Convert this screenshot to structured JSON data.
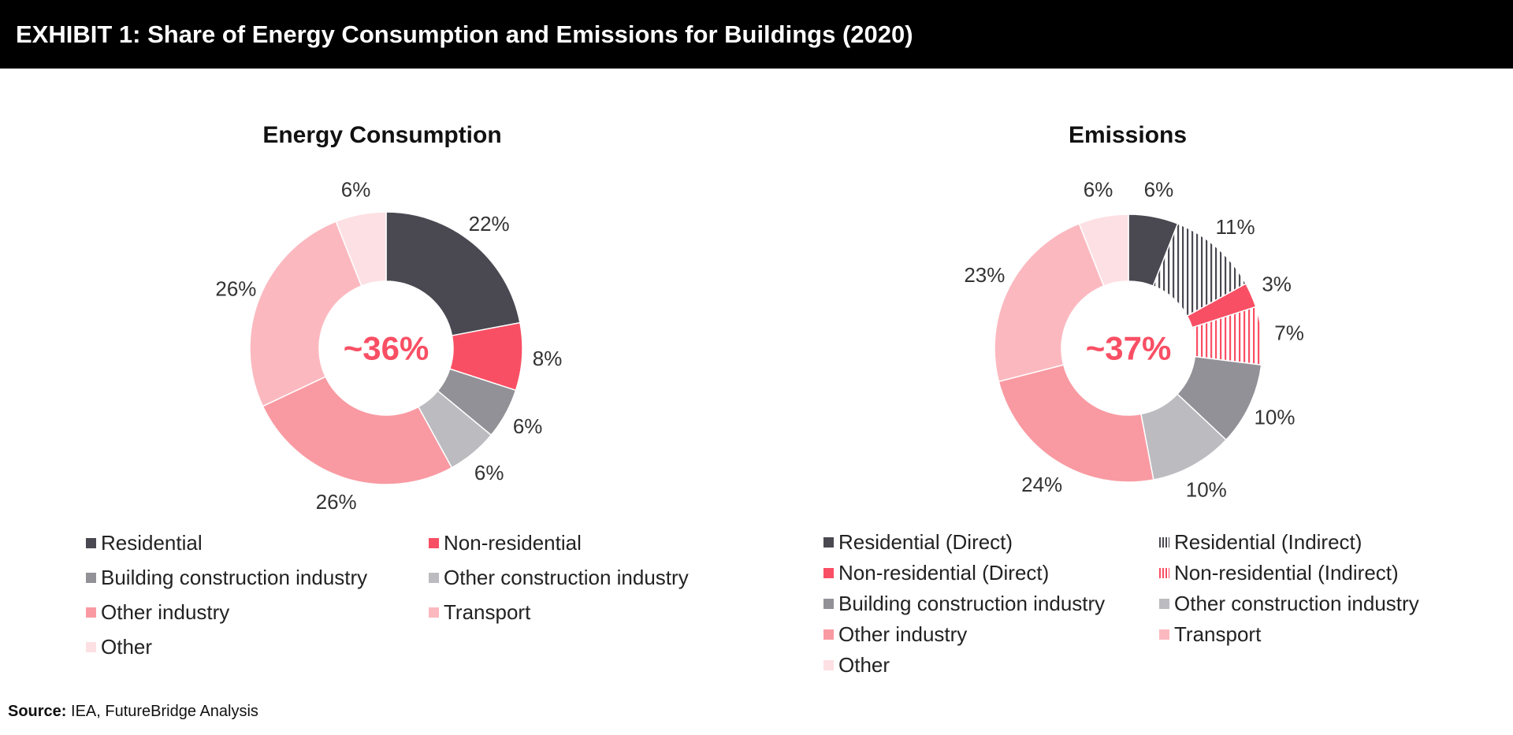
{
  "header": {
    "title": "EXHIBIT 1: Share of Energy Consumption and Emissions for Buildings (2020)"
  },
  "source": {
    "label": "Source:",
    "text": "IEA, FutureBridge Analysis"
  },
  "chart_data": [
    {
      "type": "pie",
      "title": "Energy Consumption",
      "center_label": "~36%",
      "slices": [
        {
          "name": "Residential",
          "value": 22,
          "label": "22%",
          "color": "#4a4952"
        },
        {
          "name": "Non-residential",
          "value": 8,
          "label": "8%",
          "color": "#f94f64"
        },
        {
          "name": "Building construction industry",
          "value": 6,
          "label": "6%",
          "color": "#929197"
        },
        {
          "name": "Other construction industry",
          "value": 6,
          "label": "6%",
          "color": "#bbbbc0"
        },
        {
          "name": "Other industry",
          "value": 26,
          "label": "26%",
          "color": "#f99aa2"
        },
        {
          "name": "Transport",
          "value": 26,
          "label": "26%",
          "color": "#fbb9bf"
        },
        {
          "name": "Other",
          "value": 6,
          "label": "6%",
          "color": "#fde0e4"
        }
      ],
      "legend": [
        "Residential",
        "Non-residential",
        "Building construction industry",
        "Other construction industry",
        "Other industry",
        "Transport",
        "Other"
      ]
    },
    {
      "type": "pie",
      "title": "Emissions",
      "center_label": "~37%",
      "slices": [
        {
          "name": "Residential (Direct)",
          "value": 6,
          "label": "6%",
          "color": "#4a4952"
        },
        {
          "name": "Residential (Indirect)",
          "value": 11,
          "label": "11%",
          "color": "#4a4952",
          "pattern": "hatched"
        },
        {
          "name": "Non-residential (Direct)",
          "value": 3,
          "label": "3%",
          "color": "#f94f64"
        },
        {
          "name": "Non-residential (Indirect)",
          "value": 7,
          "label": "7%",
          "color": "#f94f64",
          "pattern": "hatched"
        },
        {
          "name": "Building construction industry",
          "value": 10,
          "label": "10%",
          "color": "#929197"
        },
        {
          "name": "Other construction industry",
          "value": 10,
          "label": "10%",
          "color": "#bbbbc0"
        },
        {
          "name": "Other industry",
          "value": 24,
          "label": "24%",
          "color": "#f99aa2"
        },
        {
          "name": "Transport",
          "value": 23,
          "label": "23%",
          "color": "#fbb9bf"
        },
        {
          "name": "Other",
          "value": 6,
          "label": "6%",
          "color": "#fde0e4"
        }
      ],
      "legend": [
        "Residential (Direct)",
        "Residential (Indirect)",
        "Non-residential (Direct)",
        "Non-residential (Indirect)",
        "Building construction industry",
        "Other construction industry",
        "Other industry",
        "Transport",
        "Other"
      ]
    }
  ],
  "colors": {
    "accent": "#f94f64",
    "header_bg": "#000000"
  }
}
